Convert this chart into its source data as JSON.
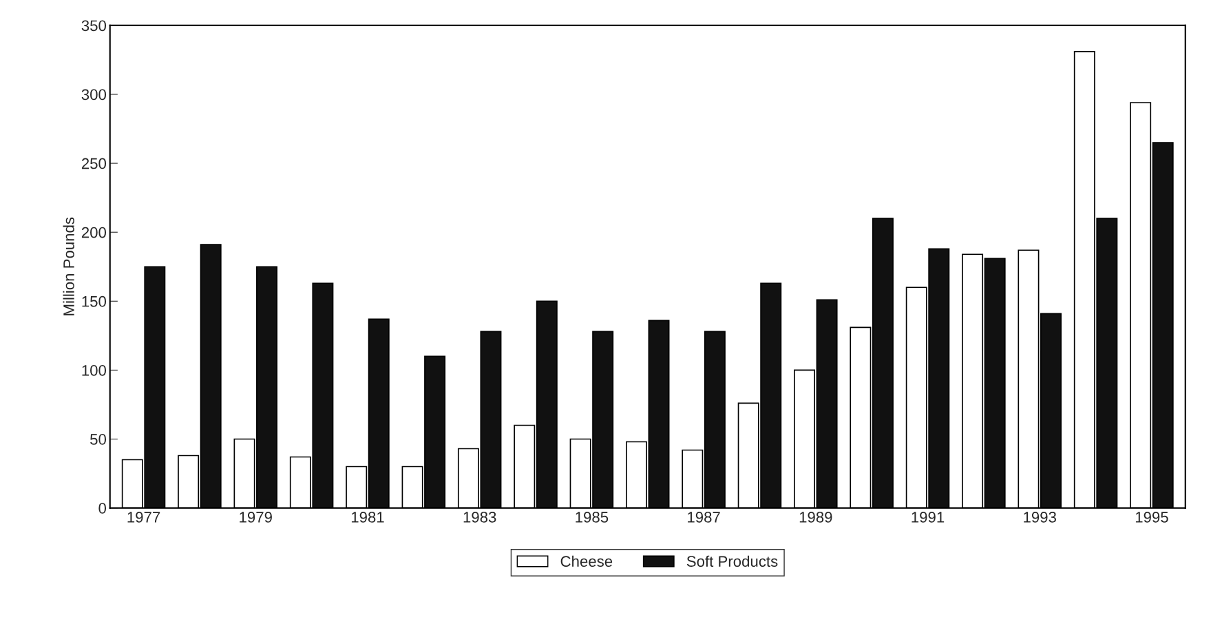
{
  "chart_data": {
    "type": "bar",
    "ylabel": "Million Pounds",
    "categories": [
      "1977",
      null,
      "1979",
      null,
      "1981",
      null,
      "1983",
      null,
      "1985",
      null,
      "1987",
      null,
      "1989",
      null,
      "1991",
      null,
      "1993",
      null,
      "1995"
    ],
    "series": [
      {
        "name": "Cheese",
        "color": "#ffffff",
        "values": [
          35,
          38,
          50,
          37,
          30,
          30,
          43,
          60,
          50,
          48,
          42,
          76,
          100,
          131,
          160,
          184,
          187,
          331,
          294
        ]
      },
      {
        "name": "Soft Products",
        "color": "#111111",
        "values": [
          175,
          191,
          175,
          163,
          137,
          110,
          128,
          150,
          128,
          136,
          128,
          163,
          151,
          210,
          188,
          181,
          141,
          210,
          265
        ]
      }
    ],
    "ylim": [
      0,
      350
    ],
    "yticks": [
      0,
      50,
      100,
      150,
      200,
      250,
      300,
      350
    ],
    "grid": false,
    "legend": "bottom"
  }
}
